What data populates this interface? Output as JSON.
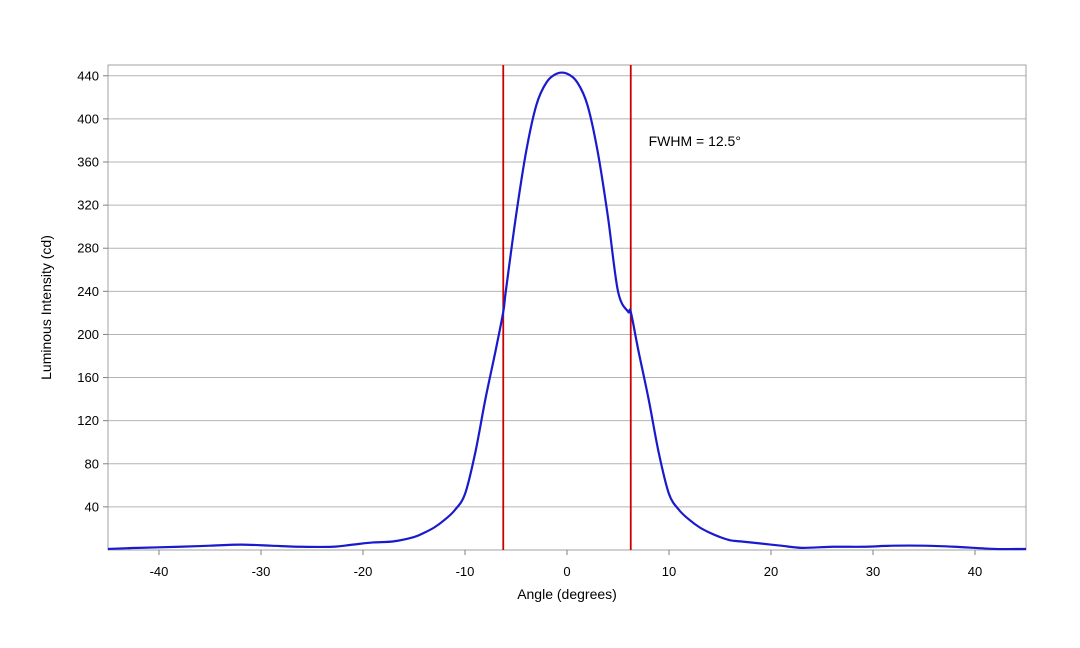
{
  "chart_data": {
    "type": "line",
    "title": "",
    "xlabel": "Angle (degrees)",
    "ylabel": "Luminous Intensity (cd)",
    "xlim": [
      -45,
      45
    ],
    "ylim": [
      0,
      450
    ],
    "x_ticks": [
      -40,
      -30,
      -20,
      -10,
      0,
      10,
      20,
      30,
      40
    ],
    "y_ticks": [
      40,
      80,
      120,
      160,
      200,
      240,
      280,
      320,
      360,
      400,
      440
    ],
    "grid": "horizontal",
    "legend": "none",
    "series": [
      {
        "color": "#1a1acd",
        "x": [
          -45,
          -42,
          -38,
          -35,
          -32,
          -29,
          -26,
          -23,
          -21,
          -19,
          -17,
          -15,
          -14,
          -13,
          -12,
          -11,
          -10,
          -9,
          -8,
          -7,
          -6.25,
          -6,
          -5,
          -4,
          -3,
          -2,
          -1,
          0,
          1,
          2,
          3,
          4,
          5,
          6,
          6.25,
          7,
          8,
          9,
          10,
          11,
          12,
          13,
          14,
          15,
          16,
          17,
          19,
          21,
          23,
          26,
          29,
          32,
          35,
          38,
          42,
          45
        ],
        "y": [
          1,
          2,
          3,
          4,
          5,
          4,
          3,
          3,
          5,
          7,
          8,
          12,
          16,
          21,
          28,
          37,
          52,
          90,
          140,
          185,
          221,
          240,
          310,
          370,
          413,
          434,
          442,
          442,
          434,
          413,
          370,
          310,
          240,
          221,
          221,
          185,
          140,
          90,
          52,
          37,
          28,
          21,
          16,
          12,
          9,
          8,
          6,
          4,
          2,
          3,
          3,
          4,
          4,
          3,
          1,
          1
        ]
      }
    ],
    "vertical_lines": [
      {
        "x": -6.25,
        "color": "#cc0000"
      },
      {
        "x": 6.25,
        "color": "#cc0000"
      }
    ],
    "annotations": [
      {
        "text": "FWHM = 12.5°",
        "x": 8,
        "y": 375
      }
    ]
  }
}
